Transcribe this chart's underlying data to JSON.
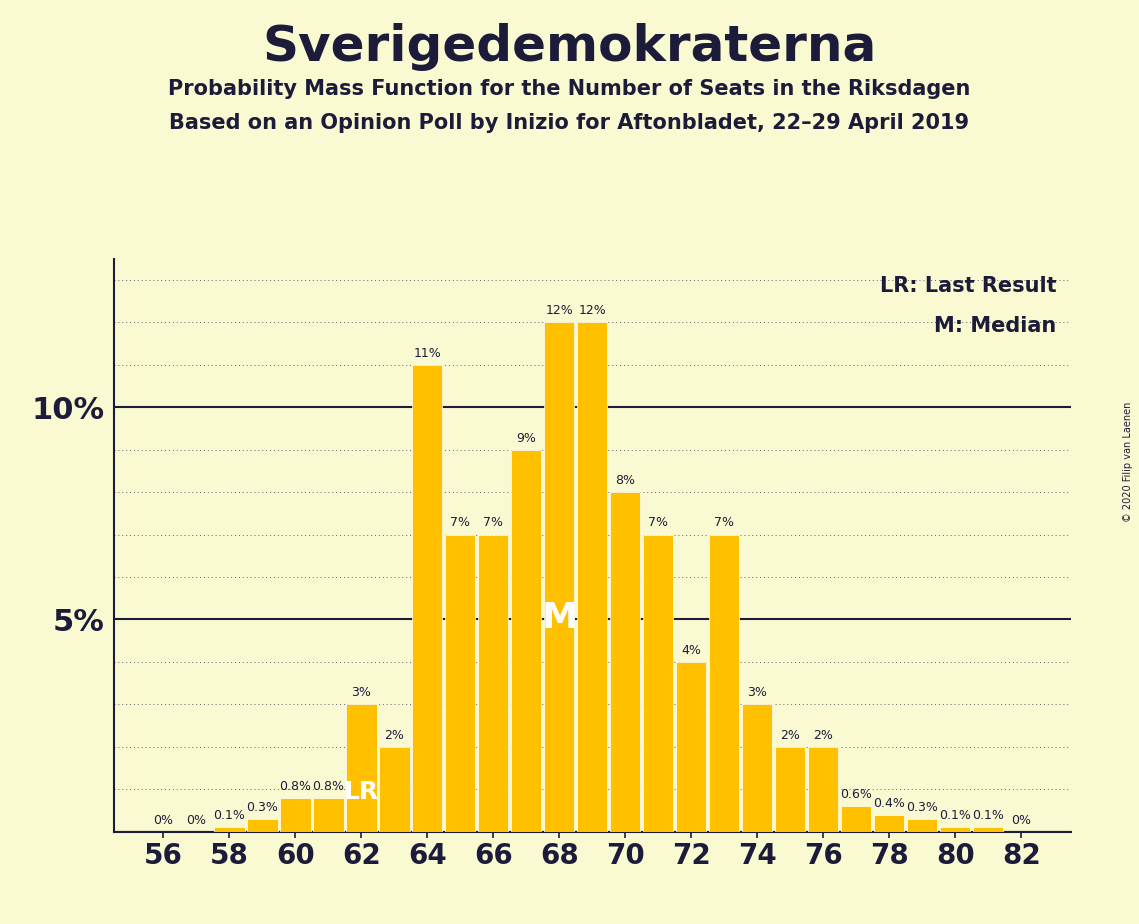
{
  "title": "Sverigedemokraterna",
  "subtitle1": "Probability Mass Function for the Number of Seats in the Riksdagen",
  "subtitle2": "Based on an Opinion Poll by Inizio for Aftonbladet, 22–29 April 2019",
  "copyright": "© 2020 Filip van Laenen",
  "seats": [
    56,
    57,
    58,
    59,
    60,
    61,
    62,
    63,
    64,
    65,
    66,
    67,
    68,
    69,
    70,
    71,
    72,
    73,
    74,
    75,
    76,
    77,
    78,
    79,
    80,
    81,
    82
  ],
  "probabilities": [
    0.0,
    0.0,
    0.1,
    0.3,
    0.8,
    0.8,
    3.0,
    2.0,
    11.0,
    7.0,
    7.0,
    9.0,
    12.0,
    12.0,
    8.0,
    7.0,
    4.0,
    7.0,
    3.0,
    2.0,
    2.0,
    0.6,
    0.4,
    0.3,
    0.1,
    0.1,
    0.0
  ],
  "bar_color": "#FFC000",
  "background_color": "#FAFAD2",
  "text_color": "#1C1C3A",
  "median_seat": 68,
  "last_result_seat": 62,
  "lr_label": "LR: Last Result",
  "m_label": "M: Median"
}
